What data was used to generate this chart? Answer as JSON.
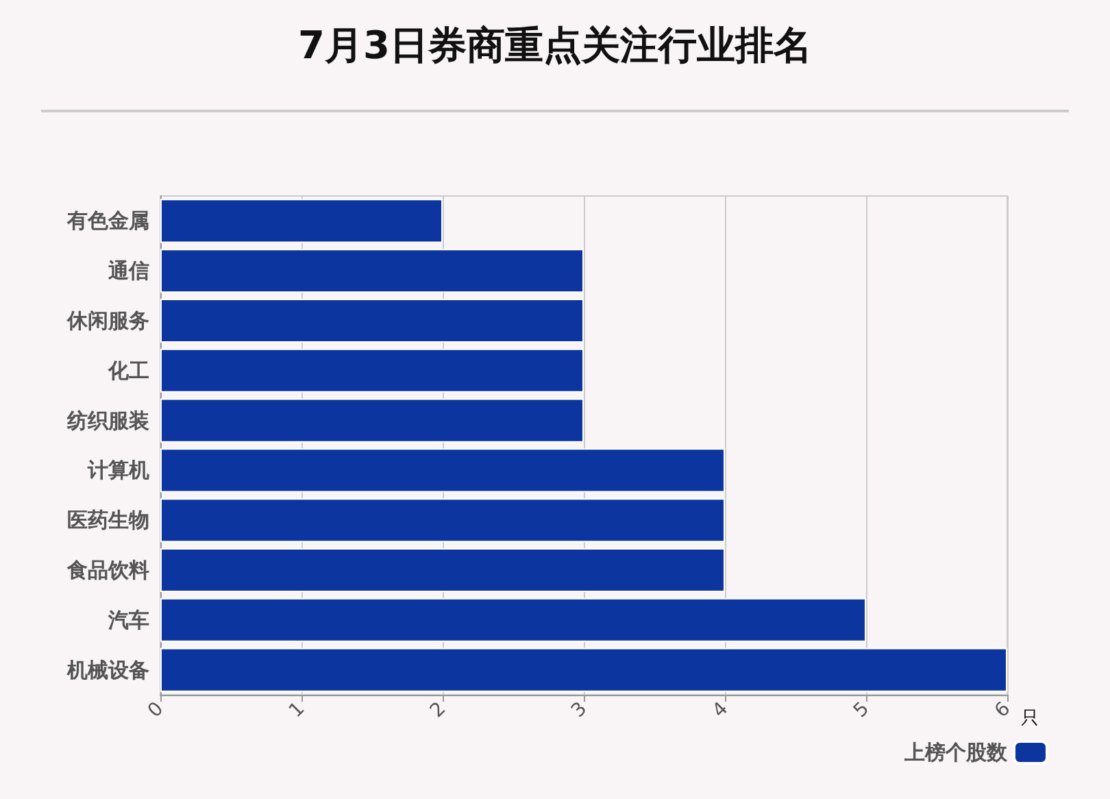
{
  "chart_data": {
    "type": "bar",
    "orientation": "horizontal",
    "title": "7月3日券商重点关注行业排名",
    "xlabel": "只",
    "categories": [
      "有色金属",
      "通信",
      "休闲服务",
      "化工",
      "纺织服装",
      "计算机",
      "医药生物",
      "食品饮料",
      "汽车",
      "机械设备"
    ],
    "series": [
      {
        "name": "上榜个股数",
        "color": "#0d35a0",
        "values": [
          2,
          3,
          3,
          3,
          3,
          4,
          4,
          4,
          5,
          6
        ]
      }
    ],
    "xlim": [
      0,
      6
    ],
    "xticks": [
      0,
      1,
      2,
      3,
      4,
      5,
      6
    ],
    "grid": "x",
    "legend": "bottom right"
  }
}
